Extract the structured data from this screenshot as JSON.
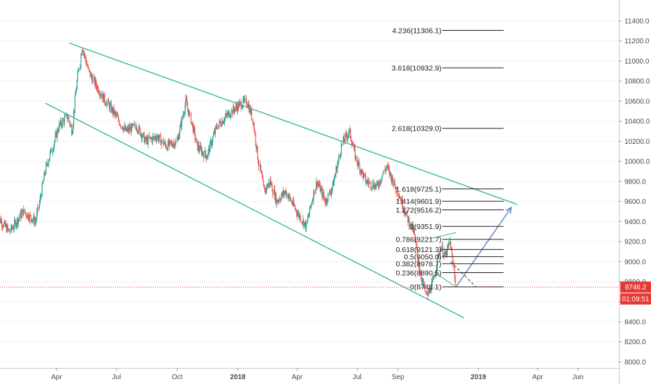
{
  "chart_data": {
    "type": "line",
    "title": "",
    "xlabel": "",
    "ylabel": "",
    "ylim": [
      7900,
      11600
    ],
    "x_ticks": [
      "Apr",
      "Jul",
      "Oct",
      "2018",
      "Apr",
      "Jul",
      "Sep",
      "2019",
      "Apr",
      "Jun"
    ],
    "y_ticks": [
      "8000.0",
      "8200.0",
      "8400.0",
      "8600.0",
      "8800.0",
      "9000.0",
      "9200.0",
      "9400.0",
      "9600.0",
      "9800.0",
      "10000.0",
      "10200.0",
      "10400.0",
      "10600.0",
      "10800.0",
      "11000.0",
      "11200.0",
      "11400.0"
    ],
    "series": [
      {
        "x": [
          "2017-01-01",
          "2017-01-20",
          "2017-02-10",
          "2017-03-01",
          "2017-03-15",
          "2017-04-05",
          "2017-04-18",
          "2017-04-25",
          "2017-05-01",
          "2017-05-10",
          "2017-05-20",
          "2017-06-01",
          "2017-06-15",
          "2017-07-01",
          "2017-07-15",
          "2017-08-01",
          "2017-08-15",
          "2017-09-01",
          "2017-09-15",
          "2017-10-01",
          "2017-10-15",
          "2017-11-01",
          "2017-11-15",
          "2017-12-01",
          "2017-12-15",
          "2018-01-01",
          "2018-01-15",
          "2018-01-25",
          "2018-02-02",
          "2018-02-10",
          "2018-02-20",
          "2018-03-01",
          "2018-03-15",
          "2018-04-01",
          "2018-04-15",
          "2018-05-01",
          "2018-05-15",
          "2018-05-25",
          "2018-06-01",
          "2018-06-10",
          "2018-06-20",
          "2018-07-01",
          "2018-07-15",
          "2018-08-01",
          "2018-08-15",
          "2018-09-01",
          "2018-09-15",
          "2018-09-25",
          "2018-10-05",
          "2018-10-15",
          "2018-10-25",
          "2018-11-05",
          "2018-11-12",
          "2018-11-20",
          "2018-11-28"
        ],
        "values": [
          9450,
          9300,
          9500,
          9400,
          9900,
          10350,
          10450,
          10300,
          10700,
          11150,
          10900,
          10750,
          10600,
          10450,
          10300,
          10350,
          10200,
          10250,
          10150,
          10200,
          10600,
          10150,
          10050,
          10350,
          10450,
          10550,
          10600,
          10400,
          10000,
          9700,
          9800,
          9600,
          9700,
          9500,
          9350,
          9800,
          9600,
          9750,
          9950,
          10200,
          10300,
          10000,
          9800,
          9750,
          9950,
          9700,
          9450,
          9300,
          8900,
          8650,
          8800,
          9150,
          9050,
          9200,
          8746.2
        ]
      }
    ],
    "channel": [
      {
        "x": [
          "2017-04-20",
          "2019-03-01"
        ],
        "y": [
          11180,
          9570
        ]
      },
      {
        "x": [
          "2017-03-15",
          "2018-12-10"
        ],
        "y": [
          10580,
          8440
        ]
      }
    ],
    "fib_levels": [
      {
        "label": "4.236(11306.1)",
        "value": 11306.1
      },
      {
        "label": "3.618(10932.9)",
        "value": 10932.9
      },
      {
        "label": "2.618(10329.0)",
        "value": 10329.0
      },
      {
        "label": "1.618(9725.1)",
        "value": 9725.1
      },
      {
        "label": "1.414(9601.9)",
        "value": 9601.9
      },
      {
        "label": "1.272(9516.2)",
        "value": 9516.2
      },
      {
        "label": "1(9351.9)",
        "value": 9351.9
      },
      {
        "label": "0.786(9221.7)",
        "value": 9221.7
      },
      {
        "label": "0.618(9121.3)",
        "value": 9121.3
      },
      {
        "label": "0.5(9050.0)",
        "value": 9050.0
      },
      {
        "label": "0.382(8978.7)",
        "value": 8978.7
      },
      {
        "label": "0.236(8890.5)",
        "value": 8890.5
      },
      {
        "label": "0(8748.1)",
        "value": 8748.1
      }
    ],
    "projection_solid": {
      "x": [
        "2018-11-28",
        "2019-02-20"
      ],
      "y": [
        8748.1,
        9540
      ]
    },
    "projection_dashed": {
      "x": [
        "2018-11-20",
        "2018-12-28"
      ],
      "y": [
        9000,
        8750
      ]
    },
    "last_price": "8746.2",
    "countdown": "01:09:51",
    "colors": {
      "up": "#26a69a",
      "down": "#ef5350",
      "channel": "#2bb38f",
      "projection": "#6c8ebf",
      "fib": "#1a1a1a",
      "price_line": "#e53935"
    },
    "grid": true,
    "legend": "none"
  }
}
